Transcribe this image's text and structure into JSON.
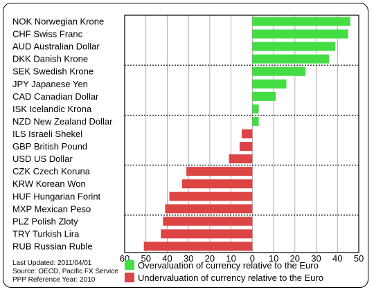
{
  "chart_data": {
    "type": "bar",
    "orientation": "horizontal",
    "categories": [
      "NOK Norwegian Krone",
      "CHF Swiss Franc",
      "AUD Australian Dollar",
      "DKK Danish Krone",
      "SEK Swedish Krone",
      "JPY Japanese Yen",
      "CAD Canadian Dollar",
      "ISK Icelandic Krona",
      "NZD New Zealand Dollar",
      "ILS Israeli Shekel",
      "GBP British Pound",
      "USD US Dollar",
      "CZK Czech Koruna",
      "KRW Korean Won",
      "HUF Hungarian Forint",
      "MXP Mexican Peso",
      "PLZ Polish Zloty",
      "TRY Turkish Lira",
      "RUB Russian Ruble"
    ],
    "values": [
      46,
      45,
      39,
      36,
      25,
      16,
      11,
      3,
      3,
      -5,
      -6,
      -11,
      -31,
      -33,
      -39,
      -41,
      -42,
      -43,
      -51
    ],
    "xlim": [
      -60,
      50
    ],
    "xticks": [
      -60,
      -50,
      -40,
      -30,
      -20,
      -10,
      0,
      10,
      20,
      30,
      40,
      50
    ],
    "xtick_labels": [
      "60",
      "50",
      "40",
      "30",
      "20",
      "10",
      "0",
      "10",
      "20",
      "30",
      "40",
      "50"
    ],
    "group_separators_after": [
      3,
      7,
      11,
      15
    ],
    "grid": "vertical",
    "legend": {
      "placement": "bottom",
      "entries": [
        {
          "label": "Overvaluation of currency relative to the Euro",
          "color": "#44dd44"
        },
        {
          "label": "Undervaluation of currency relative to the Euro",
          "color": "#dd4444"
        }
      ]
    },
    "colors": {
      "positive": "#44dd44",
      "negative": "#dd4444"
    },
    "notes": [
      "Last Updated: 2011/04/01",
      "Source: OECD, Pacific FX Service",
      "PPP Reference Year: 2010"
    ]
  }
}
